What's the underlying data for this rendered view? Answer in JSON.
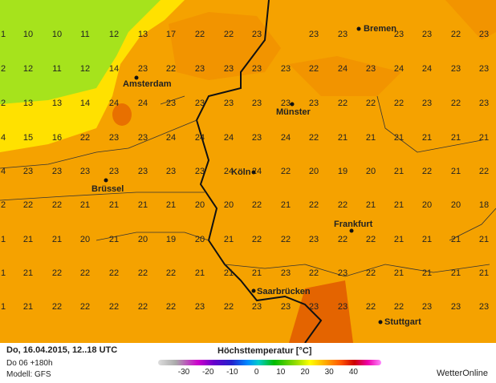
{
  "map": {
    "grid": [
      [
        1,
        10,
        10,
        11,
        12,
        13,
        17,
        22,
        22,
        23,
        null,
        23,
        23,
        null,
        23,
        23,
        22,
        23
      ],
      [
        2,
        12,
        11,
        12,
        14,
        23,
        22,
        23,
        23,
        23,
        23,
        22,
        24,
        23,
        24,
        24,
        23,
        23
      ],
      [
        2,
        13,
        13,
        14,
        24,
        24,
        23,
        23,
        23,
        23,
        23,
        23,
        22,
        22,
        22,
        23,
        22,
        23
      ],
      [
        4,
        15,
        16,
        22,
        23,
        23,
        24,
        24,
        24,
        23,
        24,
        22,
        21,
        21,
        21,
        21,
        21,
        21
      ],
      [
        4,
        23,
        23,
        23,
        23,
        23,
        23,
        23,
        24,
        24,
        22,
        20,
        19,
        20,
        21,
        22,
        21,
        22
      ],
      [
        2,
        22,
        22,
        21,
        21,
        21,
        21,
        20,
        20,
        22,
        21,
        22,
        22,
        21,
        21,
        20,
        20,
        18
      ],
      [
        1,
        21,
        21,
        20,
        21,
        20,
        19,
        20,
        21,
        22,
        22,
        23,
        22,
        22,
        21,
        21,
        21,
        21
      ],
      [
        1,
        21,
        22,
        22,
        22,
        22,
        22,
        21,
        21,
        21,
        23,
        22,
        23,
        22,
        21,
        21,
        21,
        21
      ],
      [
        1,
        21,
        22,
        22,
        22,
        22,
        22,
        23,
        22,
        23,
        23,
        23,
        23,
        22,
        22,
        23,
        23,
        23
      ]
    ],
    "cities": [
      "Bremen",
      "Amsterdam",
      "Münster",
      "Brüssel",
      "Köln",
      "Frankfurt",
      "Saarbrücken",
      "Stuttgart"
    ]
  },
  "footer": {
    "date": "Do, 16.04.2015, 12..18 UTC",
    "run": "Do 06 +180h",
    "model": "Modell: GFS",
    "brand": "WetterOnline"
  },
  "legend": {
    "title": "Höchsttemperatur [°C]",
    "ticks": [
      -30,
      -20,
      -10,
      0,
      10,
      20,
      30,
      40
    ]
  }
}
